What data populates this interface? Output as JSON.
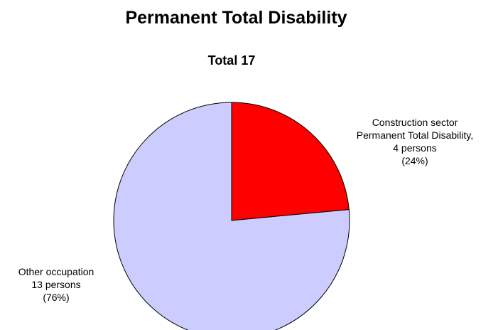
{
  "chart_data": {
    "type": "pie",
    "title": "Permanent Total Disability",
    "subtitle": "Total 17",
    "total": 17,
    "slices": [
      {
        "label_lines": [
          "Construction sector",
          "Permanent Total Disability,",
          "4 persons",
          "(24%)"
        ],
        "value": 4,
        "percent": 24,
        "color": "#ff0000"
      },
      {
        "label_lines": [
          "Other occupation",
          "13 persons",
          "(76%)"
        ],
        "value": 13,
        "percent": 76,
        "color": "#ccccff"
      }
    ]
  }
}
